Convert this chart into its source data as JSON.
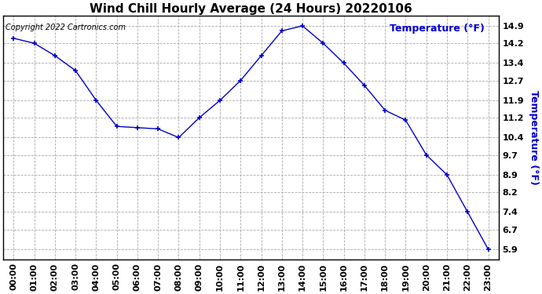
{
  "title": "Wind Chill Hourly Average (24 Hours) 20220106",
  "ylabel": "Temperature (°F)",
  "copyright_text": "Copyright 2022 Cartronics.com",
  "line_color": "#0000cc",
  "background_color": "#ffffff",
  "plot_bg_color": "#ffffff",
  "hours": [
    0,
    1,
    2,
    3,
    4,
    5,
    6,
    7,
    8,
    9,
    10,
    11,
    12,
    13,
    14,
    15,
    16,
    17,
    18,
    19,
    20,
    21,
    22,
    23
  ],
  "values": [
    14.4,
    14.2,
    13.7,
    13.1,
    11.9,
    10.85,
    10.8,
    10.75,
    10.4,
    11.2,
    11.9,
    12.7,
    13.7,
    14.7,
    14.9,
    14.2,
    13.4,
    12.5,
    11.5,
    11.1,
    9.7,
    8.9,
    7.4,
    5.9
  ],
  "yticks": [
    5.9,
    6.7,
    7.4,
    8.2,
    8.9,
    9.7,
    10.4,
    11.2,
    11.9,
    12.7,
    13.4,
    14.2,
    14.9
  ],
  "ylim": [
    5.5,
    15.3
  ],
  "marker": "+",
  "marker_size": 5,
  "grid_color": "#aaaaaa",
  "grid_style": "--",
  "title_fontsize": 11,
  "tick_fontsize": 8,
  "copyright_fontsize": 7
}
